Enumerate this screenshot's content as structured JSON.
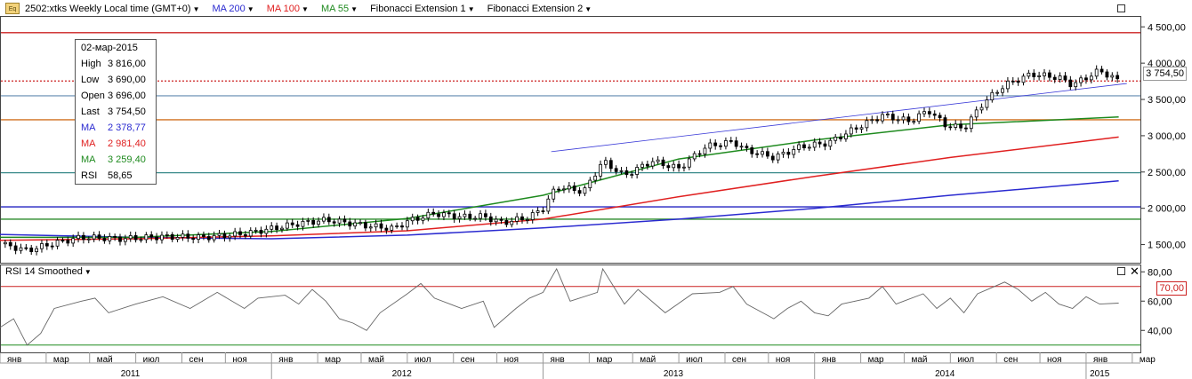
{
  "window": {
    "title": "2502:xtks Weekly Local time (GMT+0)",
    "indicators": [
      {
        "label": "MA 200",
        "color": "#2a2ad0"
      },
      {
        "label": "MA 100",
        "color": "#e02020"
      },
      {
        "label": "MA 55",
        "color": "#1e8a1e"
      },
      {
        "label": "Fibonacci Extension 1",
        "color": "#000000"
      },
      {
        "label": "Fibonacci Extension 2",
        "color": "#000000"
      }
    ],
    "rsi_title": "RSI 14 Smoothed"
  },
  "info_panel": {
    "date": "02-мар-2015",
    "rows": [
      {
        "label": "High",
        "value": "3 816,00",
        "color": "#000000"
      },
      {
        "label": "Low",
        "value": "3 690,00",
        "color": "#000000"
      },
      {
        "label": "Open",
        "value": "3 696,00",
        "color": "#000000"
      },
      {
        "label": "Last",
        "value": "3 754,50",
        "color": "#000000"
      },
      {
        "label": "MA",
        "value": "2 378,77",
        "color": "#2a2ad0"
      },
      {
        "label": "MA",
        "value": "2 981,40",
        "color": "#e02020"
      },
      {
        "label": "MA",
        "value": "3 259,40",
        "color": "#1e8a1e"
      },
      {
        "label": "RSI",
        "value": "58,65",
        "color": "#000000"
      }
    ]
  },
  "chart_data": [
    {
      "type": "candlestick",
      "title": "2502:xtks Weekly",
      "y_tick_labels": [
        "4 500,00",
        "4 000,00",
        "3 500,00",
        "3 000,00",
        "2 500,00",
        "2 000,00",
        "1 500,00"
      ],
      "y_ticks": [
        4500,
        4000,
        3500,
        3000,
        2500,
        2000,
        1500
      ],
      "ylim": [
        1250,
        4650
      ],
      "last_price": 3754.5,
      "last_price_label": "3 754,50",
      "price_path": [
        [
          2011.0,
          1510
        ],
        [
          2011.1,
          1420
        ],
        [
          2011.2,
          1520
        ],
        [
          2011.3,
          1600
        ],
        [
          2011.45,
          1580
        ],
        [
          2011.6,
          1610
        ],
        [
          2011.75,
          1600
        ],
        [
          2011.9,
          1650
        ],
        [
          2012.0,
          1720
        ],
        [
          2012.1,
          1790
        ],
        [
          2012.2,
          1840
        ],
        [
          2012.28,
          1800
        ],
        [
          2012.35,
          1760
        ],
        [
          2012.45,
          1720
        ],
        [
          2012.5,
          1820
        ],
        [
          2012.6,
          1930
        ],
        [
          2012.7,
          1880
        ],
        [
          2012.78,
          1890
        ],
        [
          2012.85,
          1800
        ],
        [
          2012.95,
          1880
        ],
        [
          2013.0,
          2000
        ],
        [
          2013.05,
          2300
        ],
        [
          2013.15,
          2230
        ],
        [
          2013.22,
          2650
        ],
        [
          2013.3,
          2450
        ],
        [
          2013.4,
          2650
        ],
        [
          2013.5,
          2550
        ],
        [
          2013.6,
          2850
        ],
        [
          2013.7,
          2920
        ],
        [
          2013.75,
          2800
        ],
        [
          2013.85,
          2700
        ],
        [
          2013.95,
          2850
        ],
        [
          2014.05,
          2900
        ],
        [
          2014.15,
          3100
        ],
        [
          2014.25,
          3280
        ],
        [
          2014.35,
          3200
        ],
        [
          2014.42,
          3350
        ],
        [
          2014.48,
          3150
        ],
        [
          2014.55,
          3100
        ],
        [
          2014.62,
          3450
        ],
        [
          2014.7,
          3700
        ],
        [
          2014.8,
          3850
        ],
        [
          2014.9,
          3800
        ],
        [
          2014.95,
          3700
        ],
        [
          2015.05,
          3900
        ],
        [
          2015.12,
          3754.5
        ]
      ],
      "ma_200": [
        [
          2011.0,
          1640
        ],
        [
          2011.5,
          1600
        ],
        [
          2012.0,
          1580
        ],
        [
          2012.5,
          1630
        ],
        [
          2013.0,
          1730
        ],
        [
          2013.5,
          1850
        ],
        [
          2014.0,
          2000
        ],
        [
          2014.5,
          2180
        ],
        [
          2015.12,
          2378.77
        ]
      ],
      "ma_100": [
        [
          2011.0,
          1560
        ],
        [
          2011.5,
          1580
        ],
        [
          2012.0,
          1620
        ],
        [
          2012.5,
          1690
        ],
        [
          2013.0,
          1850
        ],
        [
          2013.5,
          2160
        ],
        [
          2014.0,
          2440
        ],
        [
          2014.5,
          2700
        ],
        [
          2015.12,
          2981.4
        ]
      ],
      "ma_55": [
        [
          2011.0,
          1600
        ],
        [
          2011.5,
          1600
        ],
        [
          2012.0,
          1680
        ],
        [
          2012.5,
          1860
        ],
        [
          2013.0,
          2180
        ],
        [
          2013.5,
          2680
        ],
        [
          2014.0,
          2940
        ],
        [
          2014.5,
          3150
        ],
        [
          2015.12,
          3259.4
        ]
      ],
      "horizontal_levels": [
        {
          "value": 4420,
          "color": "#cc2020",
          "style": "solid"
        },
        {
          "value": 3754.5,
          "color": "#cc2020",
          "style": "dotted"
        },
        {
          "value": 3550,
          "color": "#7f9fbf",
          "style": "solid"
        },
        {
          "value": 3220,
          "color": "#d07020",
          "style": "solid"
        },
        {
          "value": 2490,
          "color": "#3a8a8a",
          "style": "solid"
        },
        {
          "value": 2020,
          "color": "#2020c0",
          "style": "solid"
        },
        {
          "value": 1850,
          "color": "#2a8a2a",
          "style": "solid"
        }
      ],
      "trend_line": [
        [
          2013.03,
          2780
        ],
        [
          2015.15,
          3720
        ]
      ]
    },
    {
      "type": "line",
      "title": "RSI 14 Smoothed",
      "y_tick_labels": [
        "80,00",
        "60,00",
        "40,00"
      ],
      "y_ticks": [
        80,
        60,
        40
      ],
      "ylim": [
        25,
        85
      ],
      "upper_level": 70,
      "upper_level_label": "70,00",
      "lower_level": 30,
      "values": [
        [
          2011.0,
          42
        ],
        [
          2011.05,
          48
        ],
        [
          2011.1,
          30
        ],
        [
          2011.15,
          38
        ],
        [
          2011.2,
          55
        ],
        [
          2011.3,
          60
        ],
        [
          2011.35,
          62
        ],
        [
          2011.4,
          52
        ],
        [
          2011.5,
          58
        ],
        [
          2011.6,
          63
        ],
        [
          2011.7,
          55
        ],
        [
          2011.8,
          66
        ],
        [
          2011.9,
          55
        ],
        [
          2011.95,
          62
        ],
        [
          2012.05,
          64
        ],
        [
          2012.1,
          58
        ],
        [
          2012.15,
          68
        ],
        [
          2012.2,
          60
        ],
        [
          2012.25,
          48
        ],
        [
          2012.3,
          45
        ],
        [
          2012.35,
          40
        ],
        [
          2012.4,
          52
        ],
        [
          2012.5,
          65
        ],
        [
          2012.55,
          72
        ],
        [
          2012.6,
          62
        ],
        [
          2012.7,
          55
        ],
        [
          2012.78,
          60
        ],
        [
          2012.82,
          42
        ],
        [
          2012.9,
          55
        ],
        [
          2012.95,
          62
        ],
        [
          2013.0,
          66
        ],
        [
          2013.05,
          82
        ],
        [
          2013.1,
          60
        ],
        [
          2013.2,
          66
        ],
        [
          2013.22,
          82
        ],
        [
          2013.3,
          58
        ],
        [
          2013.35,
          68
        ],
        [
          2013.45,
          52
        ],
        [
          2013.55,
          65
        ],
        [
          2013.65,
          66
        ],
        [
          2013.7,
          70
        ],
        [
          2013.75,
          58
        ],
        [
          2013.85,
          48
        ],
        [
          2013.9,
          55
        ],
        [
          2013.95,
          60
        ],
        [
          2014.0,
          52
        ],
        [
          2014.05,
          50
        ],
        [
          2014.1,
          58
        ],
        [
          2014.2,
          62
        ],
        [
          2014.25,
          70
        ],
        [
          2014.3,
          58
        ],
        [
          2014.4,
          65
        ],
        [
          2014.45,
          55
        ],
        [
          2014.5,
          62
        ],
        [
          2014.55,
          52
        ],
        [
          2014.6,
          65
        ],
        [
          2014.7,
          73
        ],
        [
          2014.75,
          68
        ],
        [
          2014.8,
          60
        ],
        [
          2014.85,
          66
        ],
        [
          2014.9,
          58
        ],
        [
          2014.95,
          55
        ],
        [
          2015.0,
          63
        ],
        [
          2015.05,
          58
        ],
        [
          2015.12,
          58.65
        ]
      ]
    }
  ],
  "time_axis": {
    "months": [
      {
        "label": "янв",
        "t": 2011.0
      },
      {
        "label": "мар",
        "t": 2011.17
      },
      {
        "label": "май",
        "t": 2011.33
      },
      {
        "label": "июл",
        "t": 2011.5
      },
      {
        "label": "сен",
        "t": 2011.67
      },
      {
        "label": "ноя",
        "t": 2011.83
      },
      {
        "label": "янв",
        "t": 2012.0
      },
      {
        "label": "мар",
        "t": 2012.17
      },
      {
        "label": "май",
        "t": 2012.33
      },
      {
        "label": "июл",
        "t": 2012.5
      },
      {
        "label": "сен",
        "t": 2012.67
      },
      {
        "label": "ноя",
        "t": 2012.83
      },
      {
        "label": "янв",
        "t": 2013.0
      },
      {
        "label": "мар",
        "t": 2013.17
      },
      {
        "label": "май",
        "t": 2013.33
      },
      {
        "label": "июл",
        "t": 2013.5
      },
      {
        "label": "сен",
        "t": 2013.67
      },
      {
        "label": "ноя",
        "t": 2013.83
      },
      {
        "label": "янв",
        "t": 2014.0
      },
      {
        "label": "мар",
        "t": 2014.17
      },
      {
        "label": "май",
        "t": 2014.33
      },
      {
        "label": "июл",
        "t": 2014.5
      },
      {
        "label": "сен",
        "t": 2014.67
      },
      {
        "label": "ноя",
        "t": 2014.83
      },
      {
        "label": "янв",
        "t": 2015.0
      },
      {
        "label": "мар",
        "t": 2015.17
      }
    ],
    "years": [
      {
        "label": "2011",
        "t": 2011.48
      },
      {
        "label": "2012",
        "t": 2012.48
      },
      {
        "label": "2013",
        "t": 2013.48
      },
      {
        "label": "2014",
        "t": 2014.48
      },
      {
        "label": "2015",
        "t": 2015.05
      }
    ]
  }
}
